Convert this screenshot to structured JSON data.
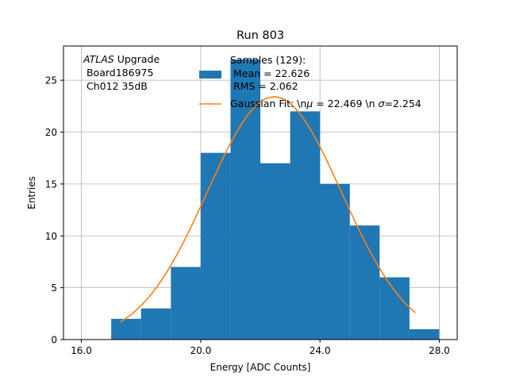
{
  "chart_data": {
    "type": "bar",
    "title": "Run 803",
    "xlabel": "Energy [ADC Counts]",
    "ylabel": "Entries",
    "xlim": [
      15.4,
      28.6
    ],
    "ylim": [
      0,
      28.3
    ],
    "grid": true,
    "x_ticks": [
      16.0,
      20.0,
      24.0,
      28.0
    ],
    "x_tick_labels": [
      "16.0",
      "20.0",
      "24.0",
      "28.0"
    ],
    "y_ticks": [
      0,
      5,
      10,
      15,
      20,
      25
    ],
    "y_tick_labels": [
      "0",
      "5",
      "10",
      "15",
      "20",
      "25"
    ],
    "histogram": {
      "name": "Samples (129):",
      "color": "#1f77b4",
      "bins": [
        {
          "x0": 17.0,
          "x1": 18.0,
          "count": 2
        },
        {
          "x0": 18.0,
          "x1": 19.0,
          "count": 3
        },
        {
          "x0": 19.0,
          "x1": 20.0,
          "count": 7
        },
        {
          "x0": 20.0,
          "x1": 21.0,
          "count": 18
        },
        {
          "x0": 21.0,
          "x1": 22.0,
          "count": 27
        },
        {
          "x0": 22.0,
          "x1": 23.0,
          "count": 17
        },
        {
          "x0": 23.0,
          "x1": 24.0,
          "count": 22
        },
        {
          "x0": 24.0,
          "x1": 25.0,
          "count": 15
        },
        {
          "x0": 25.0,
          "x1": 26.0,
          "count": 11
        },
        {
          "x0": 26.0,
          "x1": 27.0,
          "count": 6
        },
        {
          "x0": 27.0,
          "x1": 28.0,
          "count": 1
        }
      ]
    },
    "fit": {
      "name": "Gaussian Fit: \\n",
      "mu_label": "μ",
      "mu_value": " = 22.469 \\n ",
      "sigma_label": "σ",
      "sigma_value": "=2.254",
      "color": "#ff7f0e",
      "mu": 22.469,
      "sigma": 2.254,
      "amplitude": 23.4,
      "x_range": [
        17.3,
        27.2
      ]
    },
    "legend": {
      "position": "top-right",
      "hist_lines": [
        "Samples (129):",
        " Mean = 22.626",
        " RMS = 2.062"
      ]
    },
    "annotation": {
      "line1_italic": "ATLAS",
      "line1_rest": " Upgrade",
      "line2": " Board186975",
      "line3": " Ch012 35dB"
    }
  }
}
